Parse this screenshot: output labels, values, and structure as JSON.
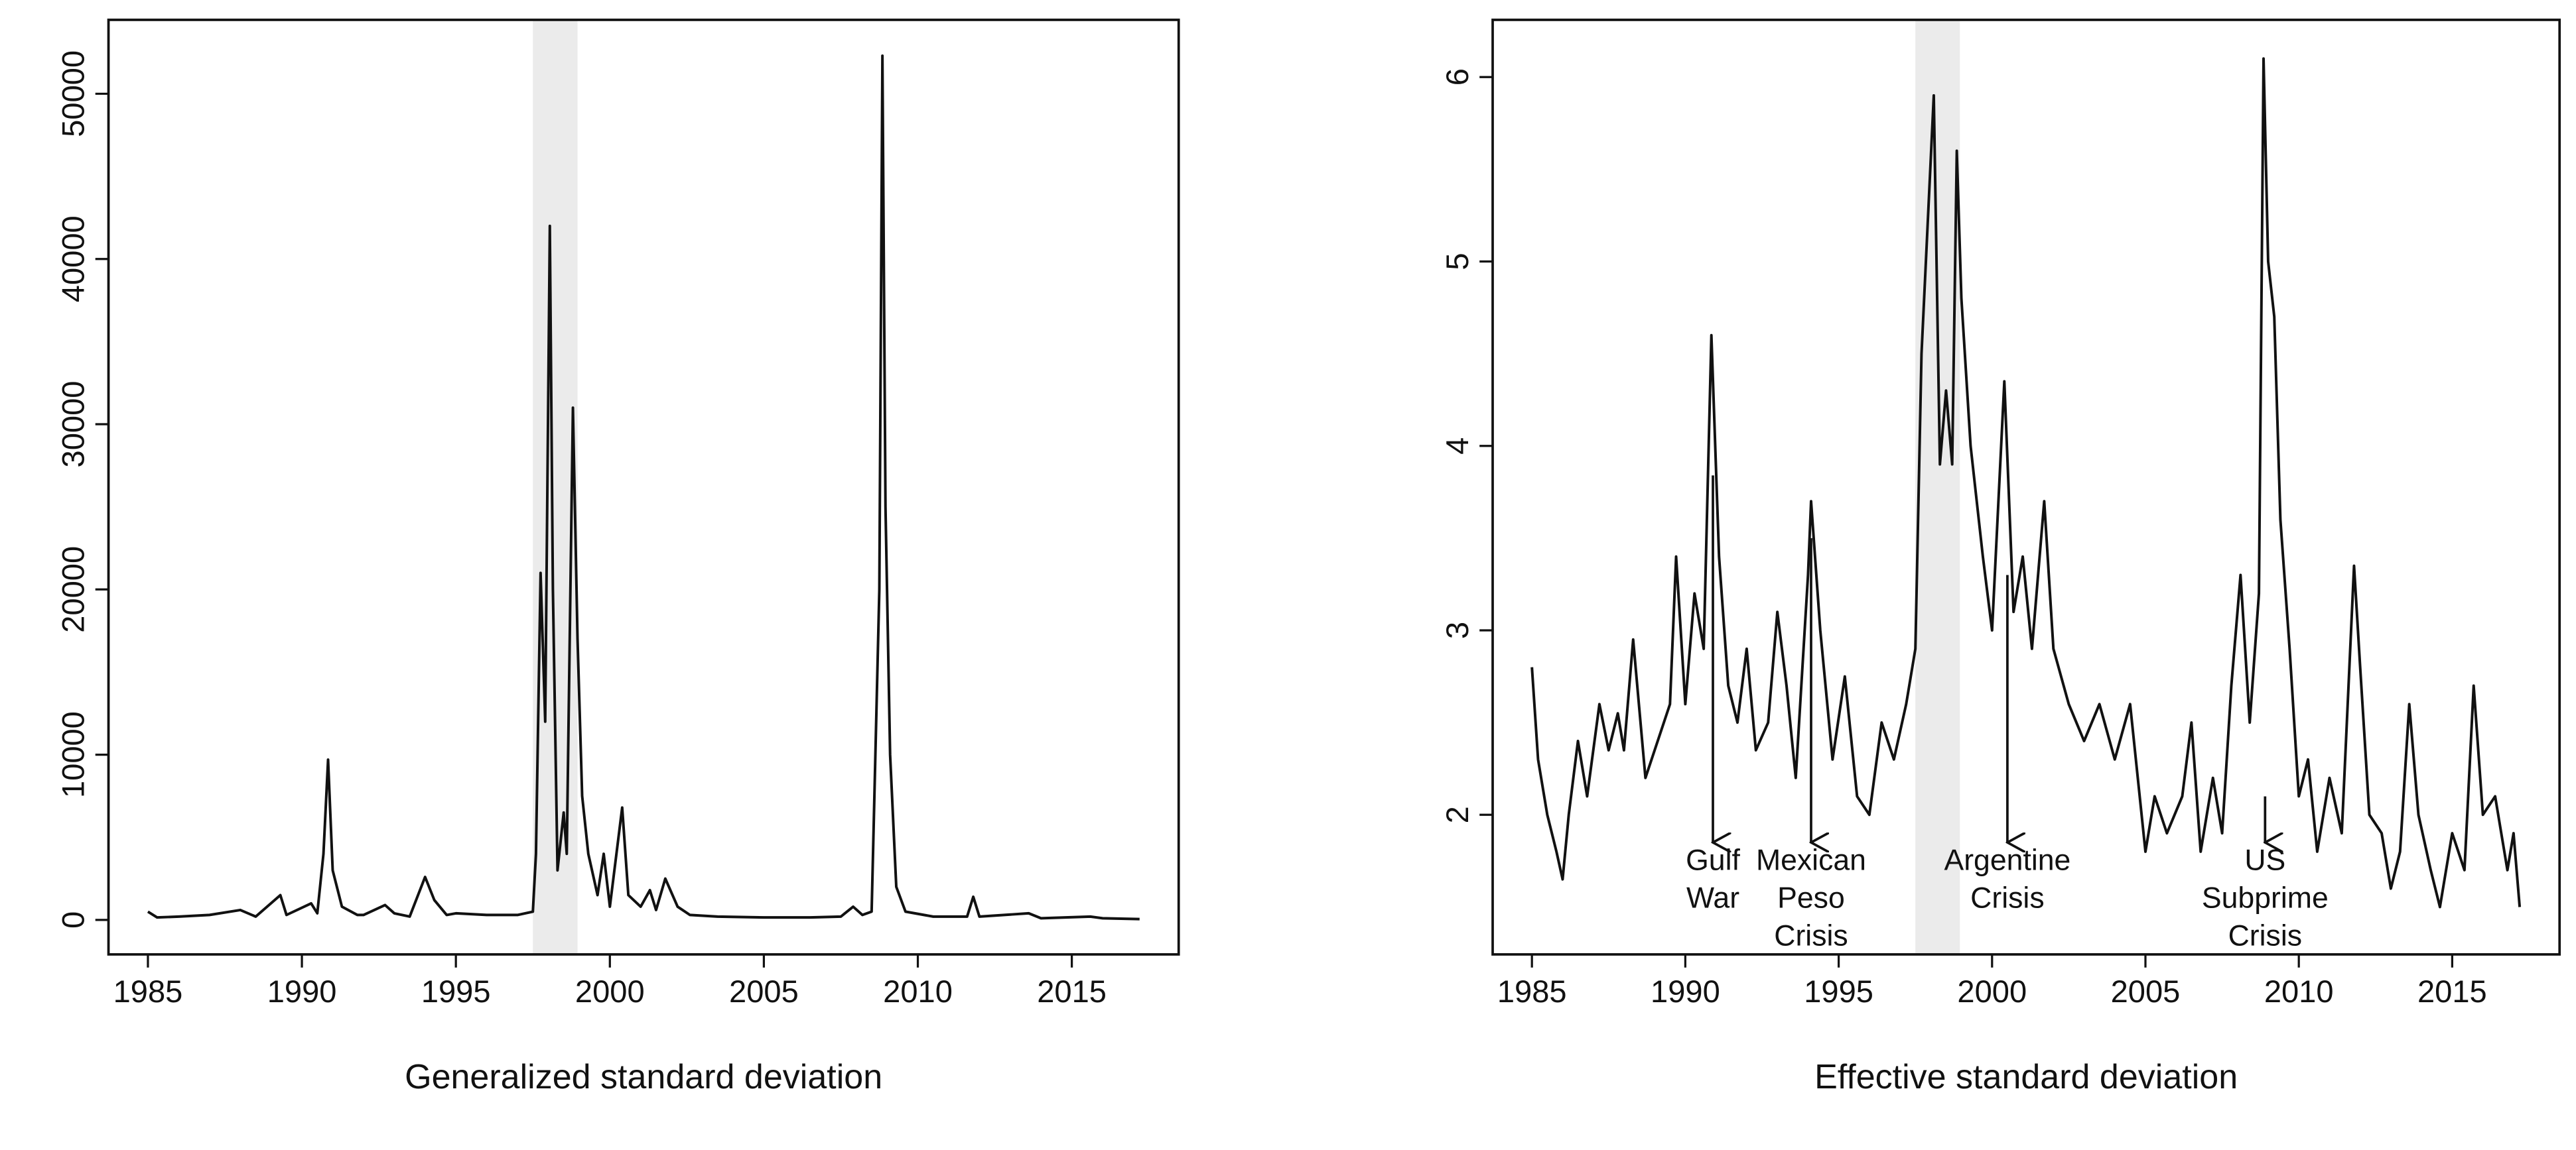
{
  "chart_data": [
    {
      "type": "line",
      "x_label": "Generalized standard deviation",
      "color": "#111111",
      "shade": [
        1997.5,
        1998.95
      ],
      "shade_color": "#ebebeb",
      "xlim": [
        1983.72,
        2018.47
      ],
      "ylim": [
        -2088,
        54473
      ],
      "xticks": [
        1985,
        1990,
        1995,
        2000,
        2005,
        2010,
        2015
      ],
      "yticks": [
        0,
        10000,
        20000,
        30000,
        40000,
        50000
      ],
      "x": [
        1985,
        1985.3,
        1986,
        1987,
        1988,
        1988.5,
        1989.3,
        1989.5,
        1990.3,
        1990.5,
        1990.7,
        1990.85,
        1991.0,
        1991.3,
        1991.8,
        1992,
        1992.7,
        1993,
        1993.5,
        1994.0,
        1994.3,
        1994.7,
        1995,
        1996,
        1997,
        1997.5,
        1997.6,
        1997.75,
        1997.9,
        1998.05,
        1998.15,
        1998.3,
        1998.5,
        1998.6,
        1998.8,
        1998.95,
        1999.1,
        1999.3,
        1999.6,
        1999.8,
        2000.0,
        2000.4,
        2000.6,
        2001,
        2001.3,
        2001.5,
        2001.8,
        2002.2,
        2002.6,
        2003.5,
        2005,
        2006.5,
        2007.5,
        2007.9,
        2008.2,
        2008.5,
        2008.75,
        2008.85,
        2008.95,
        2009.1,
        2009.3,
        2009.6,
        2010.5,
        2011.6,
        2011.8,
        2012,
        2013.6,
        2014,
        2015.6,
        2016,
        2017.2
      ],
      "values": [
        500,
        150,
        200,
        300,
        600,
        200,
        1500,
        300,
        1000,
        400,
        4000,
        9700,
        3000,
        800,
        300,
        300,
        900,
        400,
        200,
        2600,
        1200,
        300,
        400,
        300,
        300,
        500,
        4000,
        21000,
        12000,
        42000,
        20000,
        3000,
        6500,
        4000,
        31000,
        17000,
        7500,
        4000,
        1500,
        4000,
        800,
        6800,
        1500,
        800,
        1800,
        600,
        2500,
        800,
        300,
        200,
        150,
        150,
        200,
        800,
        300,
        500,
        20000,
        52300,
        25000,
        10000,
        2000,
        500,
        200,
        200,
        1400,
        200,
        400,
        100,
        200,
        100,
        50
      ]
    },
    {
      "type": "line",
      "x_label": "Effective standard deviation",
      "color": "#111111",
      "shade": [
        1997.5,
        1998.95
      ],
      "shade_color": "#ebebeb",
      "xlim": [
        1983.72,
        2018.5
      ],
      "ylim": [
        1.243,
        6.31
      ],
      "xticks": [
        1985,
        1990,
        1995,
        2000,
        2005,
        2010,
        2015
      ],
      "yticks": [
        2,
        3,
        4,
        5,
        6
      ],
      "x": [
        1985,
        1985.2,
        1985.5,
        1985.8,
        1986,
        1986.2,
        1986.5,
        1986.8,
        1987.2,
        1987.5,
        1987.8,
        1988,
        1988.3,
        1988.7,
        1989,
        1989.5,
        1989.7,
        1990,
        1990.3,
        1990.6,
        1990.85,
        1991.1,
        1991.4,
        1991.7,
        1992,
        1992.3,
        1992.7,
        1993.0,
        1993.3,
        1993.6,
        1994.0,
        1994.1,
        1994.4,
        1994.8,
        1995.2,
        1995.6,
        1996,
        1996.4,
        1996.8,
        1997.2,
        1997.5,
        1997.7,
        1997.9,
        1998.1,
        1998.3,
        1998.5,
        1998.7,
        1998.85,
        1999.0,
        1999.3,
        1999.7,
        2000.0,
        2000.4,
        2000.7,
        2001,
        2001.3,
        2001.7,
        2002,
        2002.5,
        2003,
        2003.5,
        2004,
        2004.5,
        2005,
        2005.3,
        2005.7,
        2006.2,
        2006.5,
        2006.8,
        2007.2,
        2007.5,
        2007.8,
        2008.1,
        2008.4,
        2008.7,
        2008.85,
        2009.0,
        2009.2,
        2009.4,
        2009.7,
        2010,
        2010.3,
        2010.6,
        2011,
        2011.4,
        2011.8,
        2012,
        2012.3,
        2012.7,
        2013.0,
        2013.3,
        2013.6,
        2013.9,
        2014.3,
        2014.6,
        2015,
        2015.4,
        2015.7,
        2016,
        2016.4,
        2016.8,
        2017.0,
        2017.2
      ],
      "values": [
        2.8,
        2.3,
        2.0,
        1.8,
        1.65,
        2.0,
        2.4,
        2.1,
        2.6,
        2.35,
        2.55,
        2.35,
        2.95,
        2.2,
        2.35,
        2.6,
        3.4,
        2.6,
        3.2,
        2.9,
        4.6,
        3.4,
        2.7,
        2.5,
        2.9,
        2.35,
        2.5,
        3.1,
        2.7,
        2.2,
        3.3,
        3.7,
        3.0,
        2.3,
        2.75,
        2.1,
        2.0,
        2.5,
        2.3,
        2.6,
        2.9,
        4.5,
        5.2,
        5.9,
        3.9,
        4.3,
        3.9,
        5.6,
        4.8,
        4.0,
        3.4,
        3.0,
        4.35,
        3.1,
        3.4,
        2.9,
        3.7,
        2.9,
        2.6,
        2.4,
        2.6,
        2.3,
        2.6,
        1.8,
        2.1,
        1.9,
        2.1,
        2.5,
        1.8,
        2.2,
        1.9,
        2.7,
        3.3,
        2.5,
        3.2,
        6.1,
        5.0,
        4.7,
        3.6,
        2.9,
        2.1,
        2.3,
        1.8,
        2.2,
        1.9,
        3.35,
        2.8,
        2.0,
        1.9,
        1.6,
        1.8,
        2.6,
        2.0,
        1.7,
        1.5,
        1.9,
        1.7,
        2.7,
        2.0,
        2.1,
        1.7,
        1.9,
        1.5
      ],
      "annotations": [
        {
          "text": [
            "Gulf",
            "War"
          ],
          "x": 1990.9,
          "arrow": [
            3.84,
            1.85
          ]
        },
        {
          "text": [
            "Mexican",
            "Peso",
            "Crisis"
          ],
          "x": 1994.1,
          "arrow": [
            3.5,
            1.85
          ]
        },
        {
          "text": [
            "Argentine",
            "Crisis"
          ],
          "x": 2000.5,
          "arrow": [
            3.3,
            1.85
          ]
        },
        {
          "text": [
            "US",
            "Subprime",
            "Crisis"
          ],
          "x": 2008.9,
          "arrow": [
            2.1,
            1.85
          ]
        }
      ]
    }
  ]
}
